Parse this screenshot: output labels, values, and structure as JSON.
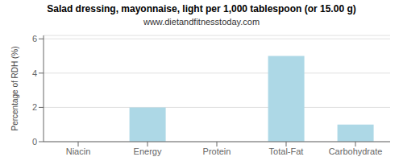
{
  "chart_data": {
    "type": "bar",
    "title": "Salad dressing, mayonnaise, light per 1,000 tablespoon (or 15.00 g)",
    "subtitle": "www.dietandfitnesstoday.com",
    "categories": [
      "Niacin",
      "Energy",
      "Protein",
      "Total-Fat",
      "Carbohydrate"
    ],
    "values": [
      0,
      2,
      0,
      5,
      1
    ],
    "color": "#ADD8E6",
    "ylabel": "Percentage of RDH (%)",
    "ylim": [
      0,
      6.2
    ],
    "yticks": [
      0,
      2,
      4,
      6
    ],
    "grid": true
  }
}
